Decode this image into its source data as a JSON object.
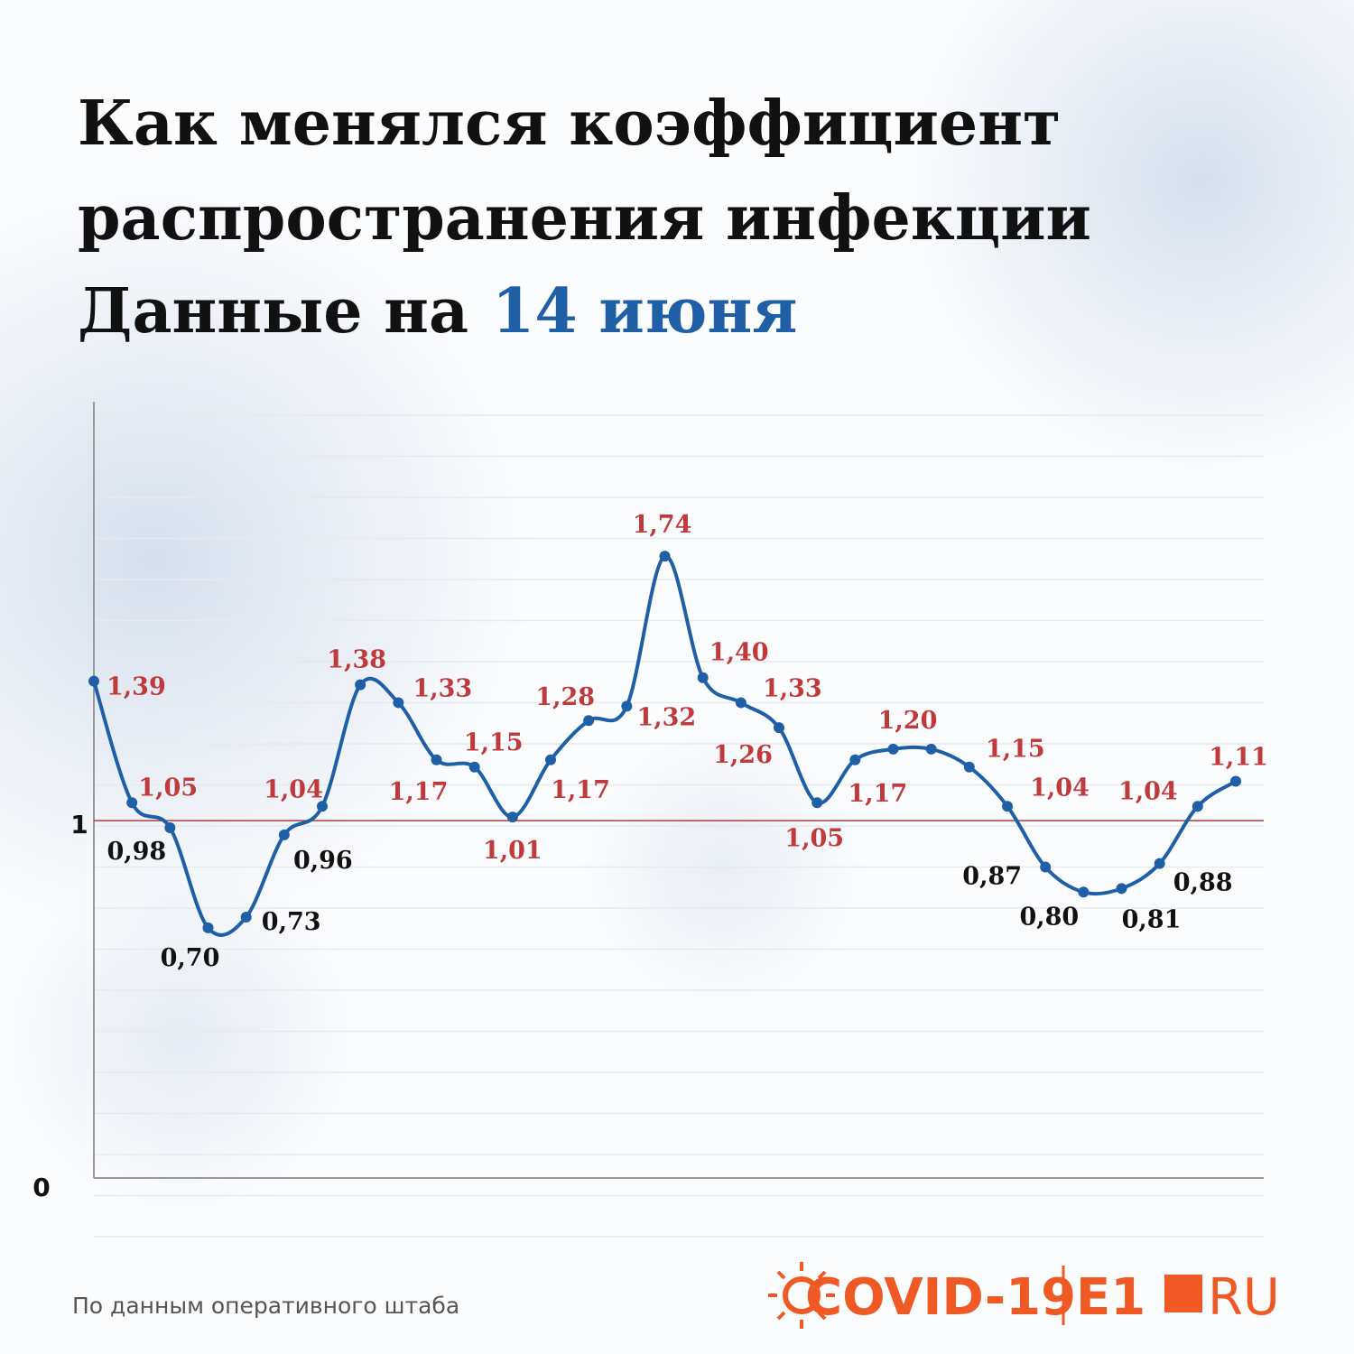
{
  "title_lines": [
    "Как менялся коэффициент",
    "распространения инфекции"
  ],
  "date_prefix": "Данные на",
  "date": "14 июня",
  "source": "По данным оперативного штаба",
  "logo": {
    "left": "COVID-19",
    "right_main": "E1",
    "right_suffix": "RU"
  },
  "chart_data": {
    "type": "line",
    "color": "#1f5fa6",
    "label_color_high": "#c0393b",
    "label_color_low": "#111111",
    "reference_color": "#b23a3a",
    "values": [
      1.39,
      1.05,
      0.98,
      0.7,
      0.73,
      0.96,
      1.04,
      1.38,
      1.33,
      1.17,
      1.15,
      1.01,
      1.17,
      1.28,
      1.32,
      1.74,
      1.4,
      1.33,
      1.26,
      1.05,
      1.17,
      1.2,
      1.2,
      1.15,
      1.04,
      0.87,
      0.8,
      0.81,
      0.88,
      1.04,
      1.11
    ],
    "value_labels": [
      "1,39",
      "1,05",
      "0,98",
      "0,70",
      "0,73",
      "0,96",
      "1,04",
      "1,38",
      "1,33",
      "1,17",
      "1,15",
      "1,01",
      "1,17",
      "1,28",
      "1,32",
      "1,74",
      "1,40",
      "1,33",
      "1,26",
      "1,05",
      "1,17",
      "1,20",
      null,
      "1,15",
      "1,04",
      "0,87",
      "0,80",
      "0,81",
      "0,88",
      "1,04",
      "1,11"
    ],
    "ylim": [
      0,
      2.2
    ],
    "yticks": [
      0,
      1
    ]
  }
}
